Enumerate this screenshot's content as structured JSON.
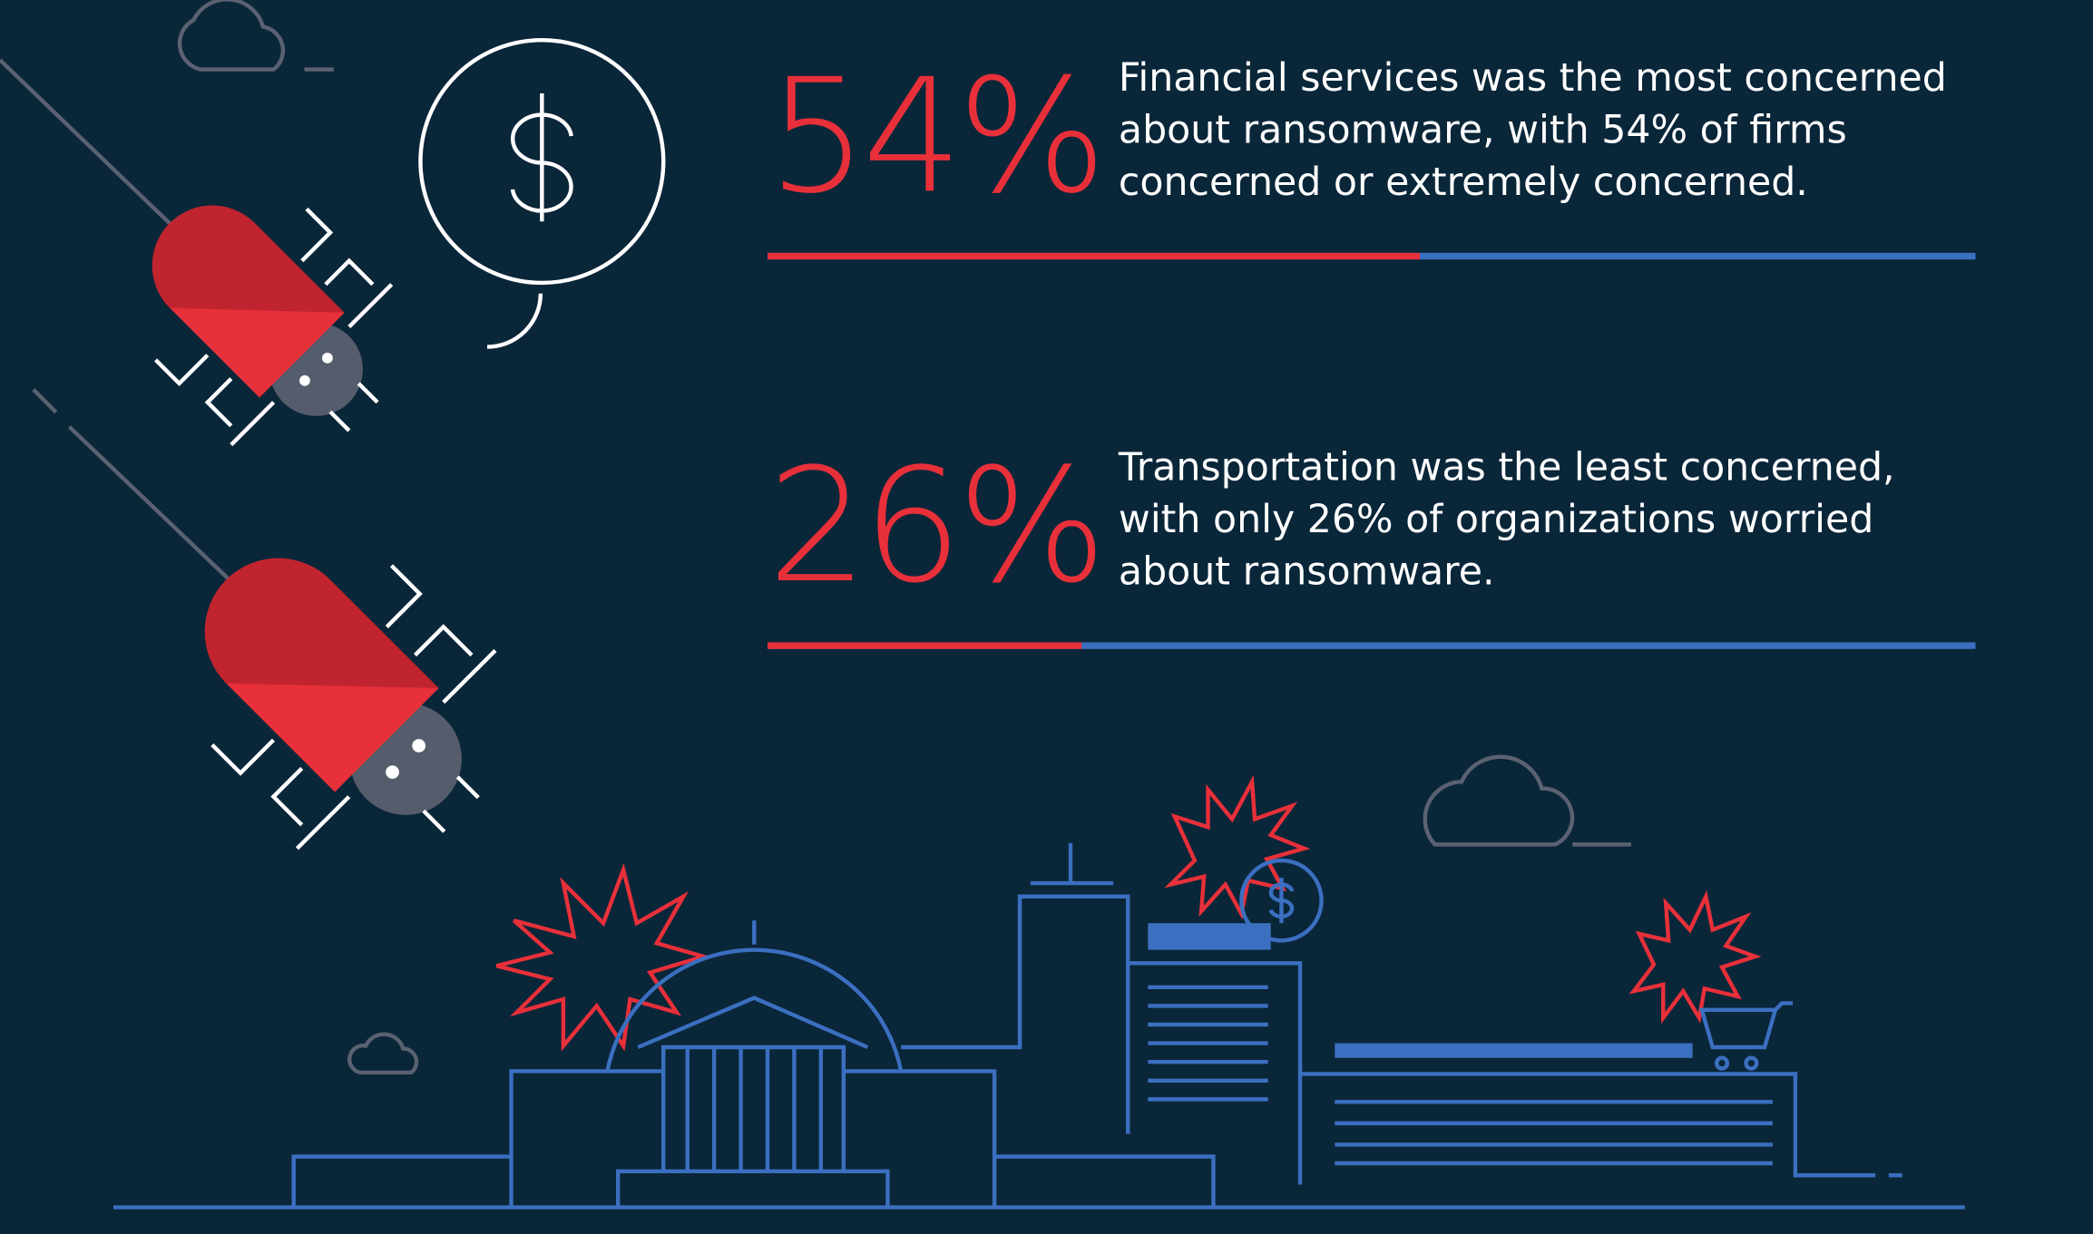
{
  "chart_data": {
    "type": "bar",
    "values": [
      54,
      26
    ],
    "value_labels": [
      "54%",
      "26%"
    ],
    "descriptions": [
      [
        "Financial services was the most concerned",
        "about ransomware, with 54% of firms",
        "concerned or extremely concerned."
      ],
      [
        "Transportation was the least concerned,",
        "with only 26% of organizations worried",
        "about ransomware."
      ]
    ],
    "xlim": [
      0,
      100
    ],
    "color": "#e8303a",
    "track_color": "#3b6fc0"
  }
}
